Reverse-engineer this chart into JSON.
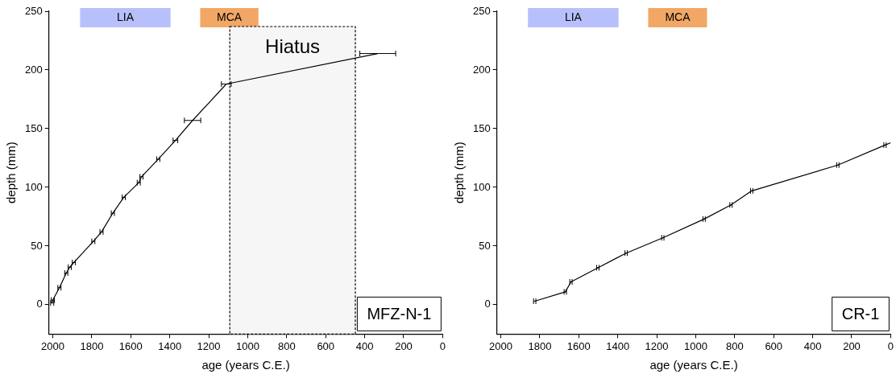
{
  "chart_data": [
    {
      "type": "line",
      "xlabel": "age (years C.E.)",
      "ylabel": "depth (mm)",
      "xlim": [
        2020,
        0
      ],
      "ylim": [
        -25,
        250
      ],
      "xticks": [
        2000,
        1800,
        1600,
        1400,
        1200,
        1000,
        800,
        600,
        400,
        200,
        0
      ],
      "yticks": [
        0,
        50,
        100,
        150,
        200,
        250
      ],
      "grid": false,
      "legend": false,
      "marker": "none",
      "line_style": "solid",
      "series": [
        {
          "color": "#000000",
          "x": [
            2003,
            2000,
            1966,
            1931,
            1913,
            1892,
            1792,
            1750,
            1692,
            1636,
            1559,
            1545,
            1459,
            1371,
            1283,
            1110,
            333
          ],
          "values": [
            1.5,
            4,
            14.5,
            27,
            32,
            36,
            54,
            62,
            78,
            91.5,
            104,
            109,
            124,
            140,
            157,
            188,
            214
          ],
          "xerrors": [
            8,
            8,
            8,
            8,
            8,
            8,
            8,
            8,
            8,
            8,
            8,
            8,
            8,
            12,
            42,
            25,
            92
          ]
        }
      ],
      "bands": [
        {
          "axis": "x",
          "from": 1860,
          "to": 1396,
          "label": "LIA",
          "color": "#b8c0fb"
        },
        {
          "axis": "x",
          "from": 1244,
          "to": 945,
          "label": "MCA",
          "color": "#f2a766"
        },
        {
          "axis": "x",
          "from": 1092,
          "to": 448,
          "label": "Hiatus",
          "color": "#f6f6f6"
        }
      ],
      "annotations": [
        "MFZ-N-1"
      ]
    },
    {
      "type": "line",
      "xlabel": "age (years C.E.)",
      "ylabel": "depth (mm)",
      "xlim": [
        2020,
        0
      ],
      "ylim": [
        -25,
        250
      ],
      "xticks": [
        2000,
        1800,
        1600,
        1400,
        1200,
        1000,
        800,
        600,
        400,
        200,
        0
      ],
      "yticks": [
        0,
        50,
        100,
        150,
        200,
        250
      ],
      "grid": false,
      "legend": false,
      "marker": "none",
      "line_style": "solid",
      "series": [
        {
          "color": "#000000",
          "x": [
            1826,
            1669,
            1640,
            1502,
            1357,
            1169,
            957,
            819,
            713,
            271,
            29,
            0
          ],
          "values": [
            3,
            11,
            19.5,
            31.5,
            44,
            57,
            73,
            85,
            97,
            119,
            136,
            138
          ],
          "xerrors": [
            6,
            6,
            6,
            6,
            6,
            6,
            6,
            6,
            6,
            6,
            6,
            null
          ]
        }
      ],
      "bands": [
        {
          "axis": "x",
          "from": 1861,
          "to": 1396,
          "label": "LIA",
          "color": "#b8c0fb"
        },
        {
          "axis": "x",
          "from": 1244,
          "to": 942,
          "label": "MCA",
          "color": "#f2a766"
        }
      ],
      "annotations": [
        "CR-1"
      ]
    }
  ]
}
